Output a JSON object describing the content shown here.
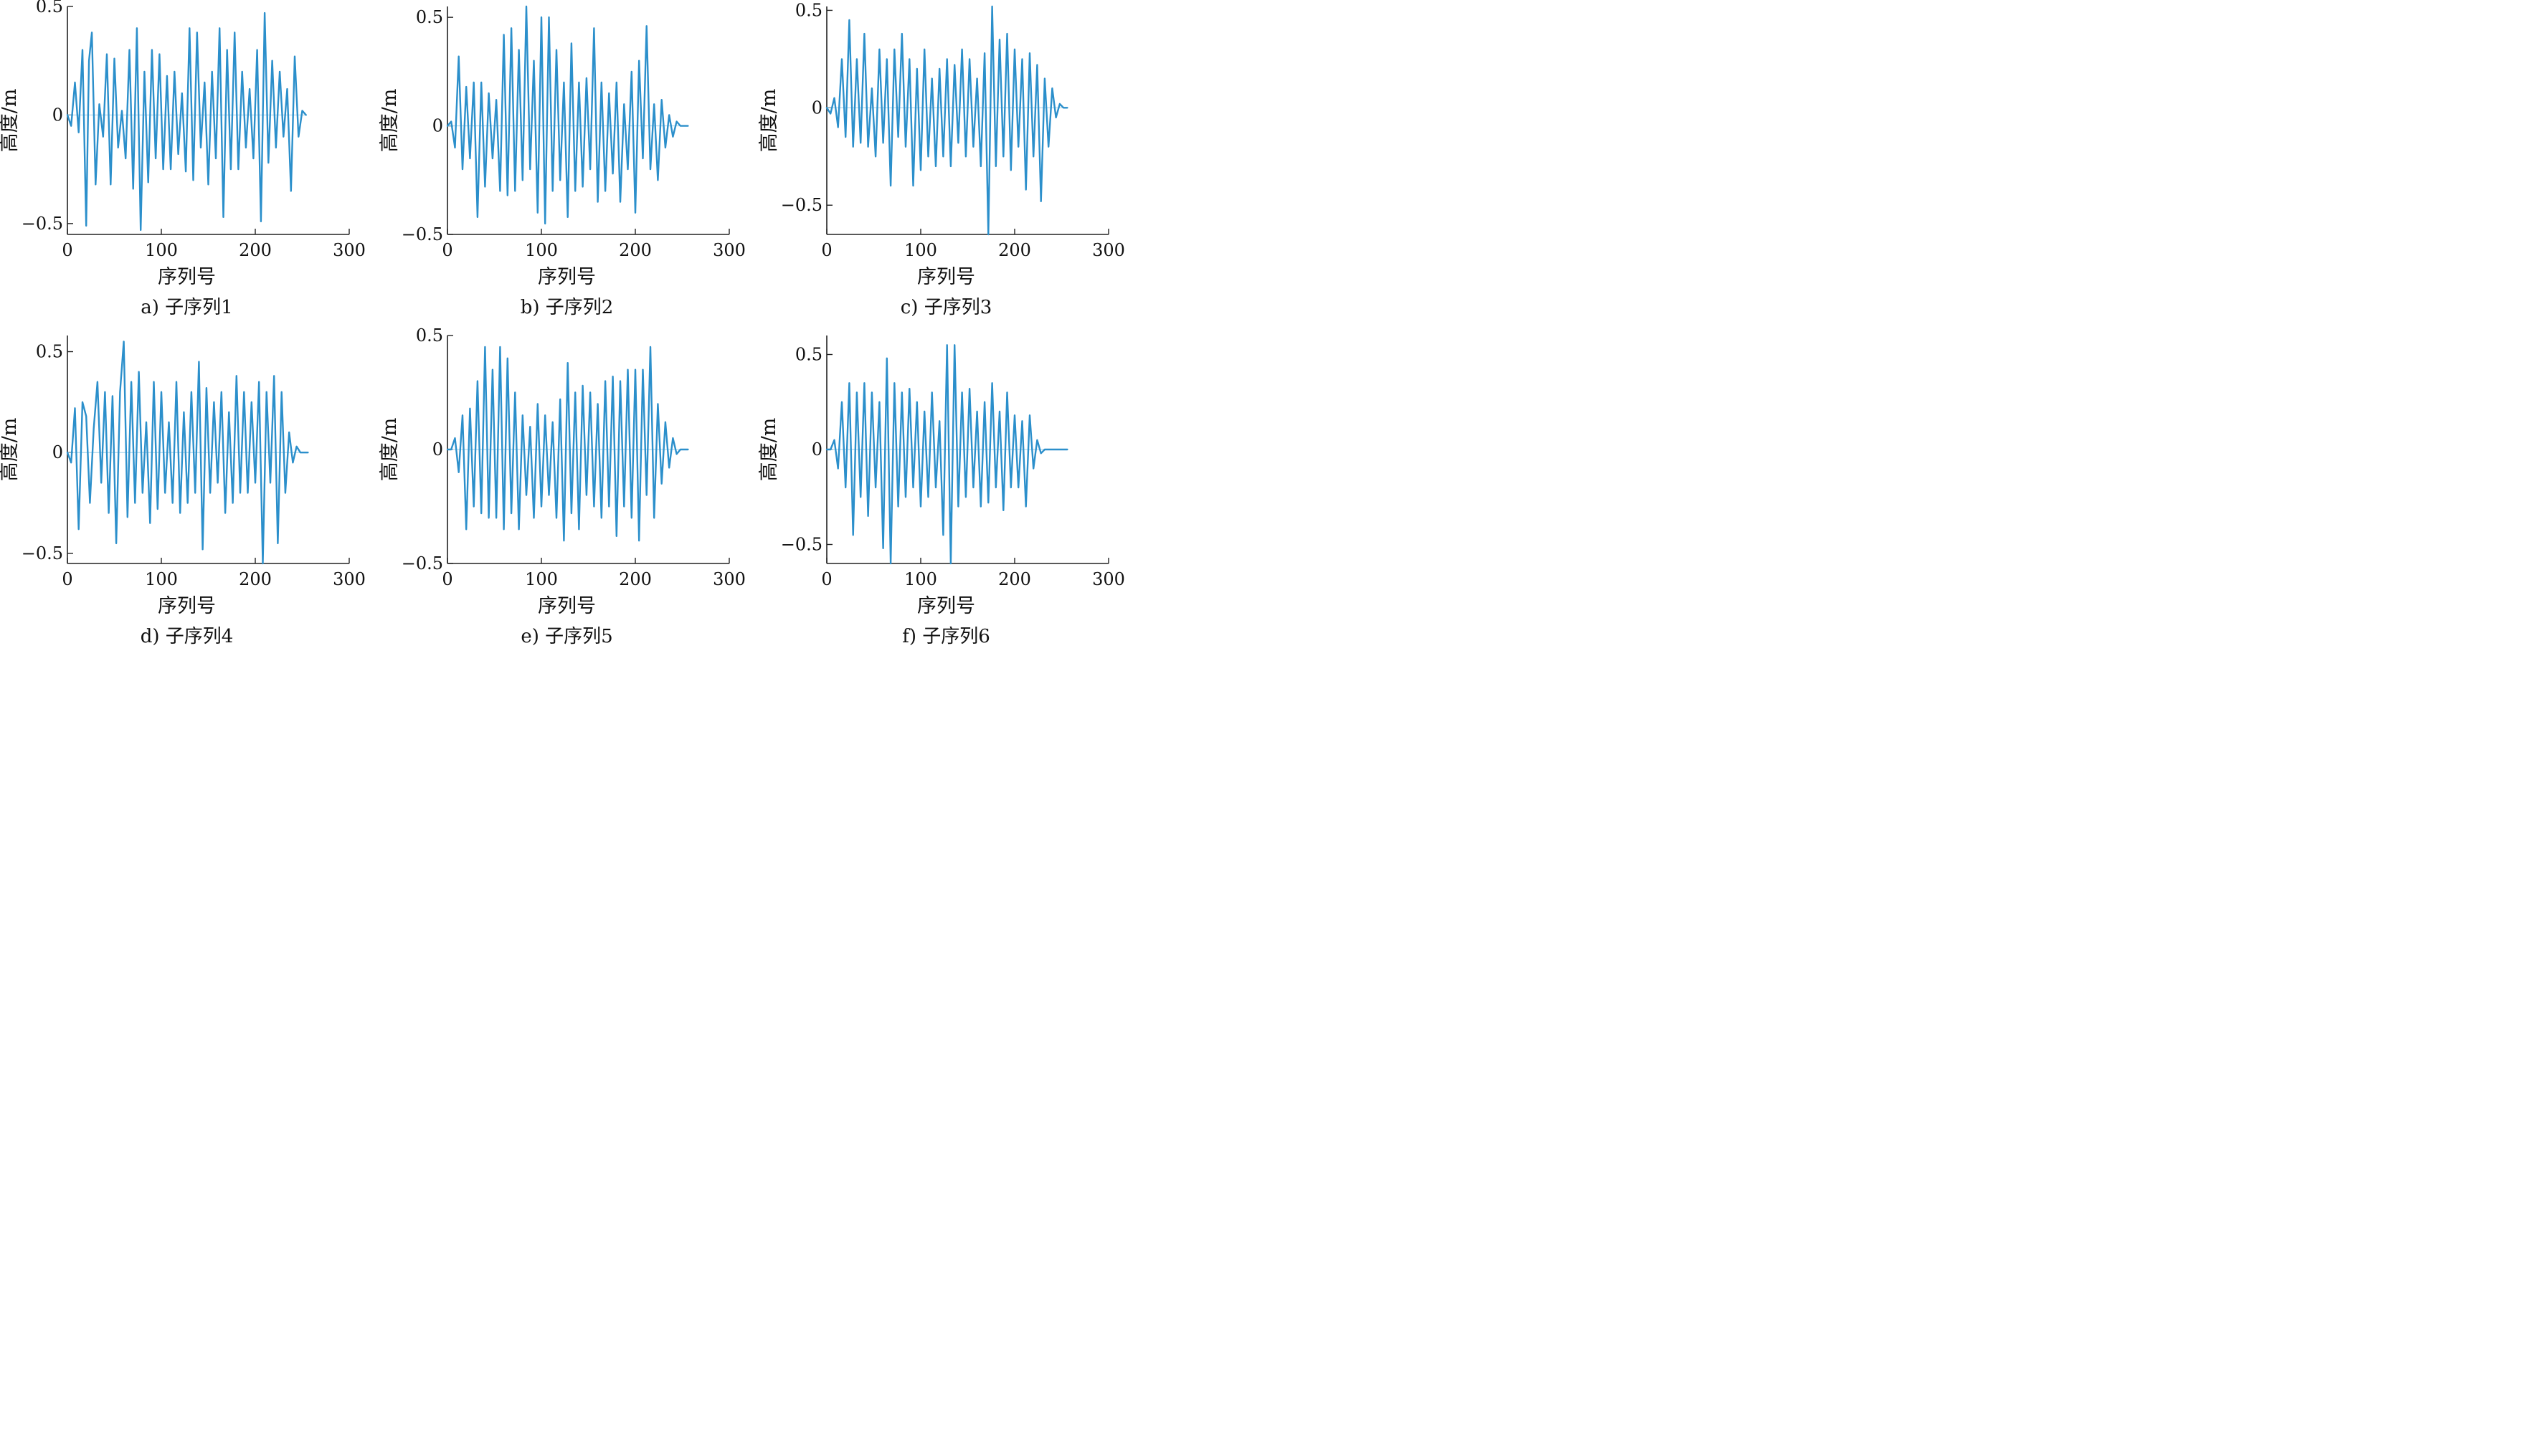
{
  "chart_data": [
    {
      "type": "line",
      "caption": "a) 子序列1",
      "xlabel": "序列号",
      "ylabel": "高度/m",
      "xlim": [
        0,
        300
      ],
      "ylim": [
        -0.55,
        0.5
      ],
      "xticks": [
        0,
        100,
        200,
        300
      ],
      "yticks": [
        -0.5,
        0,
        0.5
      ],
      "ytick_labels": [
        "−0.5",
        "0",
        "0.5"
      ],
      "series": [
        {
          "color": "#2b8fcb",
          "x": [
            0,
            4,
            8,
            12,
            16,
            20,
            23,
            26,
            30,
            34,
            38,
            42,
            46,
            50,
            54,
            58,
            62,
            66,
            70,
            74,
            78,
            82,
            86,
            90,
            94,
            98,
            102,
            106,
            110,
            114,
            118,
            122,
            126,
            130,
            134,
            138,
            142,
            146,
            150,
            154,
            158,
            162,
            166,
            170,
            174,
            178,
            182,
            186,
            190,
            194,
            198,
            202,
            206,
            210,
            214,
            218,
            222,
            226,
            230,
            234,
            238,
            242,
            246,
            250,
            254
          ],
          "y": [
            0,
            -0.05,
            0.15,
            -0.08,
            0.3,
            -0.51,
            0.25,
            0.38,
            -0.32,
            0.05,
            -0.1,
            0.28,
            -0.32,
            0.26,
            -0.15,
            0.02,
            -0.2,
            0.3,
            -0.34,
            0.4,
            -0.53,
            0.2,
            -0.31,
            0.3,
            -0.2,
            0.28,
            -0.25,
            0.18,
            -0.25,
            0.2,
            -0.18,
            0.1,
            -0.26,
            0.4,
            -0.3,
            0.38,
            -0.15,
            0.15,
            -0.32,
            0.2,
            -0.2,
            0.4,
            -0.47,
            0.3,
            -0.25,
            0.38,
            -0.25,
            0.2,
            -0.15,
            0.12,
            -0.2,
            0.3,
            -0.49,
            0.47,
            -0.22,
            0.25,
            -0.15,
            0.2,
            -0.1,
            0.12,
            -0.35,
            0.27,
            -0.1,
            0.02,
            0
          ]
        }
      ]
    },
    {
      "type": "line",
      "caption": "b) 子序列2",
      "xlabel": "序列号",
      "ylabel": "高度/m",
      "xlim": [
        0,
        300
      ],
      "ylim": [
        -0.5,
        0.55
      ],
      "xticks": [
        0,
        100,
        200,
        300
      ],
      "yticks": [
        -0.5,
        0,
        0.5
      ],
      "ytick_labels": [
        "−0.5",
        "0",
        "0.5"
      ],
      "series": [
        {
          "color": "#2b8fcb",
          "x": [
            0,
            4,
            8,
            12,
            16,
            20,
            24,
            28,
            32,
            36,
            40,
            44,
            48,
            52,
            56,
            60,
            64,
            68,
            72,
            76,
            80,
            84,
            88,
            92,
            96,
            100,
            104,
            108,
            112,
            116,
            120,
            124,
            128,
            132,
            136,
            140,
            144,
            148,
            152,
            156,
            160,
            164,
            168,
            172,
            176,
            180,
            184,
            188,
            192,
            196,
            200,
            204,
            208,
            212,
            216,
            220,
            224,
            228,
            232,
            236,
            240,
            244,
            248,
            252,
            256
          ],
          "y": [
            0,
            0.02,
            -0.1,
            0.32,
            -0.2,
            0.18,
            -0.15,
            0.2,
            -0.42,
            0.2,
            -0.28,
            0.15,
            -0.15,
            0.12,
            -0.3,
            0.42,
            -0.32,
            0.45,
            -0.3,
            0.35,
            -0.25,
            0.55,
            -0.2,
            0.3,
            -0.4,
            0.5,
            -0.45,
            0.5,
            -0.3,
            0.35,
            -0.25,
            0.2,
            -0.42,
            0.38,
            -0.3,
            0.2,
            -0.28,
            0.22,
            -0.2,
            0.45,
            -0.35,
            0.2,
            -0.3,
            0.15,
            -0.22,
            0.2,
            -0.35,
            0.1,
            -0.2,
            0.25,
            -0.4,
            0.3,
            -0.15,
            0.46,
            -0.2,
            0.1,
            -0.25,
            0.12,
            -0.1,
            0.05,
            -0.05,
            0.02,
            0,
            0,
            0
          ]
        }
      ]
    },
    {
      "type": "line",
      "caption": "c) 子序列3",
      "xlabel": "序列号",
      "ylabel": "高度/m",
      "xlim": [
        0,
        300
      ],
      "ylim": [
        -0.65,
        0.52
      ],
      "xticks": [
        0,
        100,
        200,
        300
      ],
      "yticks": [
        -0.5,
        0,
        0.5
      ],
      "ytick_labels": [
        "−0.5",
        "0",
        "0.5"
      ],
      "series": [
        {
          "color": "#2b8fcb",
          "x": [
            0,
            4,
            8,
            12,
            16,
            20,
            24,
            28,
            32,
            36,
            40,
            44,
            48,
            52,
            56,
            60,
            64,
            68,
            72,
            76,
            80,
            84,
            88,
            92,
            96,
            100,
            104,
            108,
            112,
            116,
            120,
            124,
            128,
            132,
            136,
            140,
            144,
            148,
            152,
            156,
            160,
            164,
            168,
            172,
            176,
            180,
            184,
            188,
            192,
            196,
            200,
            204,
            208,
            212,
            216,
            220,
            224,
            228,
            232,
            236,
            240,
            244,
            248,
            252,
            256
          ],
          "y": [
            0,
            -0.03,
            0.05,
            -0.1,
            0.25,
            -0.15,
            0.45,
            -0.2,
            0.25,
            -0.18,
            0.38,
            -0.2,
            0.1,
            -0.25,
            0.3,
            -0.18,
            0.25,
            -0.4,
            0.3,
            -0.15,
            0.38,
            -0.2,
            0.25,
            -0.4,
            0.2,
            -0.32,
            0.3,
            -0.25,
            0.15,
            -0.3,
            0.2,
            -0.25,
            0.25,
            -0.3,
            0.22,
            -0.18,
            0.3,
            -0.25,
            0.25,
            -0.2,
            0.15,
            -0.3,
            0.28,
            -0.65,
            0.52,
            -0.3,
            0.35,
            -0.25,
            0.38,
            -0.32,
            0.3,
            -0.2,
            0.25,
            -0.42,
            0.28,
            -0.25,
            0.22,
            -0.48,
            0.15,
            -0.2,
            0.1,
            -0.05,
            0.02,
            0,
            0
          ]
        }
      ]
    },
    {
      "type": "line",
      "caption": "d) 子序列4",
      "xlabel": "序列号",
      "ylabel": "高度/m",
      "xlim": [
        0,
        300
      ],
      "ylim": [
        -0.55,
        0.58
      ],
      "xticks": [
        0,
        100,
        200,
        300
      ],
      "yticks": [
        -0.5,
        0,
        0.5
      ],
      "ytick_labels": [
        "−0.5",
        "0",
        "0.5"
      ],
      "series": [
        {
          "color": "#2b8fcb",
          "x": [
            0,
            4,
            8,
            12,
            16,
            20,
            24,
            28,
            32,
            36,
            40,
            44,
            48,
            52,
            56,
            60,
            64,
            68,
            72,
            76,
            80,
            84,
            88,
            92,
            96,
            100,
            104,
            108,
            112,
            116,
            120,
            124,
            128,
            132,
            136,
            140,
            144,
            148,
            152,
            156,
            160,
            164,
            168,
            172,
            176,
            180,
            184,
            188,
            192,
            196,
            200,
            204,
            208,
            212,
            216,
            220,
            224,
            228,
            232,
            236,
            240,
            244,
            248,
            252,
            256
          ],
          "y": [
            0,
            -0.05,
            0.22,
            -0.38,
            0.25,
            0.18,
            -0.25,
            0.12,
            0.35,
            -0.15,
            0.3,
            -0.3,
            0.28,
            -0.45,
            0.3,
            0.55,
            -0.32,
            0.35,
            -0.25,
            0.4,
            -0.2,
            0.15,
            -0.35,
            0.35,
            -0.28,
            0.3,
            -0.2,
            0.15,
            -0.25,
            0.35,
            -0.3,
            0.2,
            -0.25,
            0.3,
            -0.2,
            0.45,
            -0.48,
            0.32,
            -0.2,
            0.25,
            -0.15,
            0.3,
            -0.3,
            0.2,
            -0.25,
            0.38,
            -0.2,
            0.3,
            -0.2,
            0.25,
            -0.15,
            0.35,
            -0.55,
            0.3,
            -0.15,
            0.38,
            -0.45,
            0.3,
            -0.2,
            0.1,
            -0.05,
            0.03,
            0,
            0,
            0
          ]
        }
      ]
    },
    {
      "type": "line",
      "caption": "e) 子序列5",
      "xlabel": "序列号",
      "ylabel": "高度/m",
      "xlim": [
        0,
        300
      ],
      "ylim": [
        -0.5,
        0.5
      ],
      "xticks": [
        0,
        100,
        200,
        300
      ],
      "yticks": [
        -0.5,
        0,
        0.5
      ],
      "ytick_labels": [
        "−0.5",
        "0",
        "0.5"
      ],
      "series": [
        {
          "color": "#2b8fcb",
          "x": [
            0,
            4,
            8,
            12,
            16,
            20,
            24,
            28,
            32,
            36,
            40,
            44,
            48,
            52,
            56,
            60,
            64,
            68,
            72,
            76,
            80,
            84,
            88,
            92,
            96,
            100,
            104,
            108,
            112,
            116,
            120,
            124,
            128,
            132,
            136,
            140,
            144,
            148,
            152,
            156,
            160,
            164,
            168,
            172,
            176,
            180,
            184,
            188,
            192,
            196,
            200,
            204,
            208,
            212,
            216,
            220,
            224,
            228,
            232,
            236,
            240,
            244,
            248,
            252,
            256
          ],
          "y": [
            0,
            0,
            0.05,
            -0.1,
            0.15,
            -0.35,
            0.18,
            -0.25,
            0.3,
            -0.28,
            0.45,
            -0.3,
            0.35,
            -0.3,
            0.45,
            -0.35,
            0.4,
            -0.28,
            0.25,
            -0.35,
            0.15,
            -0.2,
            0.1,
            -0.3,
            0.2,
            -0.25,
            0.15,
            -0.2,
            0.12,
            -0.3,
            0.22,
            -0.4,
            0.38,
            -0.28,
            0.25,
            -0.35,
            0.28,
            -0.2,
            0.25,
            -0.25,
            0.2,
            -0.3,
            0.3,
            -0.25,
            0.32,
            -0.38,
            0.3,
            -0.25,
            0.35,
            -0.3,
            0.35,
            -0.4,
            0.35,
            -0.2,
            0.45,
            -0.3,
            0.2,
            -0.15,
            0.12,
            -0.08,
            0.05,
            -0.02,
            0,
            0,
            0
          ]
        }
      ]
    },
    {
      "type": "line",
      "caption": "f) 子序列6",
      "xlabel": "序列号",
      "ylabel": "高度/m",
      "xlim": [
        0,
        300
      ],
      "ylim": [
        -0.6,
        0.6
      ],
      "xticks": [
        0,
        100,
        200,
        300
      ],
      "yticks": [
        -0.5,
        0,
        0.5
      ],
      "ytick_labels": [
        "−0.5",
        "0",
        "0.5"
      ],
      "series": [
        {
          "color": "#2b8fcb",
          "x": [
            0,
            4,
            8,
            12,
            16,
            20,
            24,
            28,
            32,
            36,
            40,
            44,
            48,
            52,
            56,
            60,
            64,
            68,
            72,
            76,
            80,
            84,
            88,
            92,
            96,
            100,
            104,
            108,
            112,
            116,
            120,
            124,
            128,
            132,
            136,
            140,
            144,
            148,
            152,
            156,
            160,
            164,
            168,
            172,
            176,
            180,
            184,
            188,
            192,
            196,
            200,
            204,
            208,
            212,
            216,
            220,
            224,
            228,
            232,
            236,
            240,
            244,
            248,
            252,
            256
          ],
          "y": [
            0,
            0,
            0.05,
            -0.1,
            0.25,
            -0.2,
            0.35,
            -0.45,
            0.3,
            -0.25,
            0.35,
            -0.35,
            0.3,
            -0.2,
            0.25,
            -0.52,
            0.48,
            -0.6,
            0.35,
            -0.3,
            0.3,
            -0.25,
            0.32,
            -0.2,
            0.25,
            -0.3,
            0.2,
            -0.25,
            0.3,
            -0.2,
            0.15,
            -0.45,
            0.55,
            -0.6,
            0.55,
            -0.3,
            0.3,
            -0.25,
            0.32,
            -0.2,
            0.2,
            -0.3,
            0.25,
            -0.28,
            0.35,
            -0.2,
            0.2,
            -0.32,
            0.3,
            -0.2,
            0.18,
            -0.2,
            0.15,
            -0.3,
            0.18,
            -0.1,
            0.05,
            -0.02,
            0,
            0,
            0,
            0,
            0,
            0,
            0
          ]
        }
      ]
    }
  ]
}
